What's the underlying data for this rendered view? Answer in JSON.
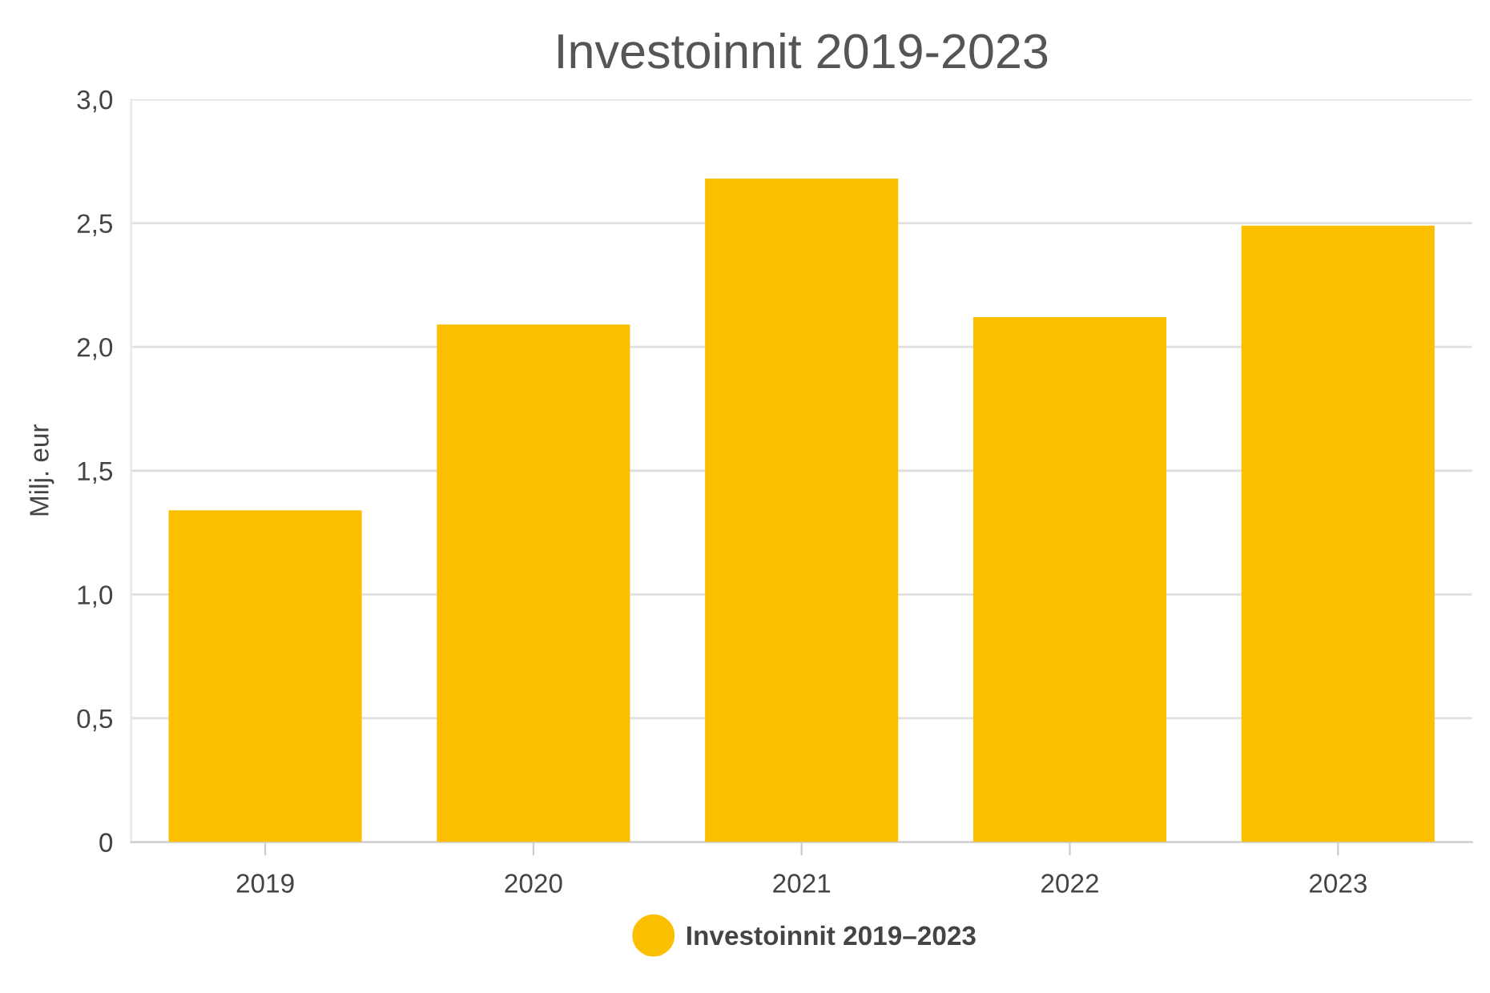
{
  "chart_data": {
    "type": "bar",
    "title": "Investoinnit 2019-2023",
    "ylabel": "Milj. eur",
    "categories": [
      "2019",
      "2020",
      "2021",
      "2022",
      "2023"
    ],
    "series": [
      {
        "name": "Investoinnit 2019–2023",
        "color": "#fbbf00",
        "values": [
          1.34,
          2.09,
          2.68,
          2.12,
          2.49
        ]
      }
    ],
    "ylim": [
      0,
      3
    ],
    "yticks": [
      0,
      {
        "value": 0.5,
        "label": "0,5"
      },
      {
        "value": 1,
        "label": "1,0"
      },
      {
        "value": 1.5,
        "label": "1,5"
      },
      {
        "value": 2,
        "label": "2,0"
      },
      {
        "value": 2.5,
        "label": "2,5"
      },
      {
        "value": 3,
        "label": "3,0"
      }
    ],
    "grid": "y",
    "legend": "bottom",
    "marker": "circle"
  }
}
